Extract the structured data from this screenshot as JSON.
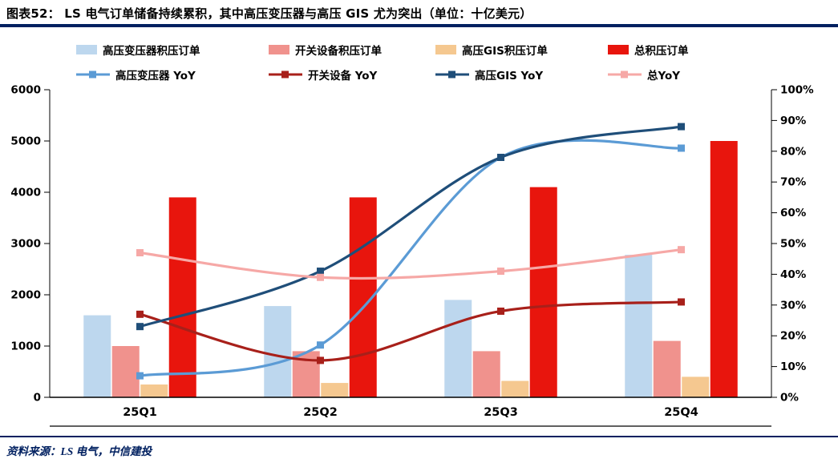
{
  "header": {
    "title": "图表52：  LS 电气订单储备持续累积，其中高压变压器与高压 GIS 尤为突出（单位：十亿美元）",
    "rule_color": "#002060"
  },
  "source": {
    "label": "资料来源：LS 电气，中信建投"
  },
  "colors": {
    "accent_navy": "#002060",
    "axis_text": "#000000"
  },
  "chart_data": {
    "type": "bar",
    "subtype": "combo bar + smooth line, dual axis",
    "categories": [
      "25Q1",
      "25Q2",
      "25Q3",
      "25Q4"
    ],
    "bar_series": [
      {
        "name": "高压变压器积压订单",
        "color": "#BDD7EE",
        "axis": "left",
        "values": [
          1600,
          1780,
          1900,
          2780
        ]
      },
      {
        "name": "开关设备积压订单",
        "color": "#F0928D",
        "axis": "left",
        "values": [
          1000,
          900,
          900,
          1100
        ]
      },
      {
        "name": "高压GIS积压订单",
        "color": "#F5C890",
        "axis": "left",
        "values": [
          250,
          280,
          320,
          400
        ]
      },
      {
        "name": "总积压订单",
        "color": "#E8150D",
        "axis": "left",
        "values": [
          3900,
          3900,
          4100,
          5000
        ]
      }
    ],
    "line_series": [
      {
        "name": "高压变压器 YoY",
        "color": "#5B9BD5",
        "axis": "right",
        "values": [
          0.07,
          0.17,
          0.78,
          0.81
        ]
      },
      {
        "name": "开关设备 YoY",
        "color": "#A8201A",
        "axis": "right",
        "values": [
          0.27,
          0.12,
          0.28,
          0.31
        ]
      },
      {
        "name": "高压GIS YoY",
        "color": "#1F4E79",
        "axis": "right",
        "values": [
          0.23,
          0.41,
          0.78,
          0.88
        ]
      },
      {
        "name": "总YoY",
        "color": "#F6A8A6",
        "axis": "right",
        "values": [
          0.47,
          0.39,
          0.41,
          0.48
        ]
      }
    ],
    "left_axis": {
      "min": 0,
      "max": 6000,
      "step": 1000
    },
    "right_axis": {
      "min": 0,
      "max": 1,
      "step": 0.1,
      "format": "percent"
    },
    "grid": false,
    "legend_position": "top"
  }
}
